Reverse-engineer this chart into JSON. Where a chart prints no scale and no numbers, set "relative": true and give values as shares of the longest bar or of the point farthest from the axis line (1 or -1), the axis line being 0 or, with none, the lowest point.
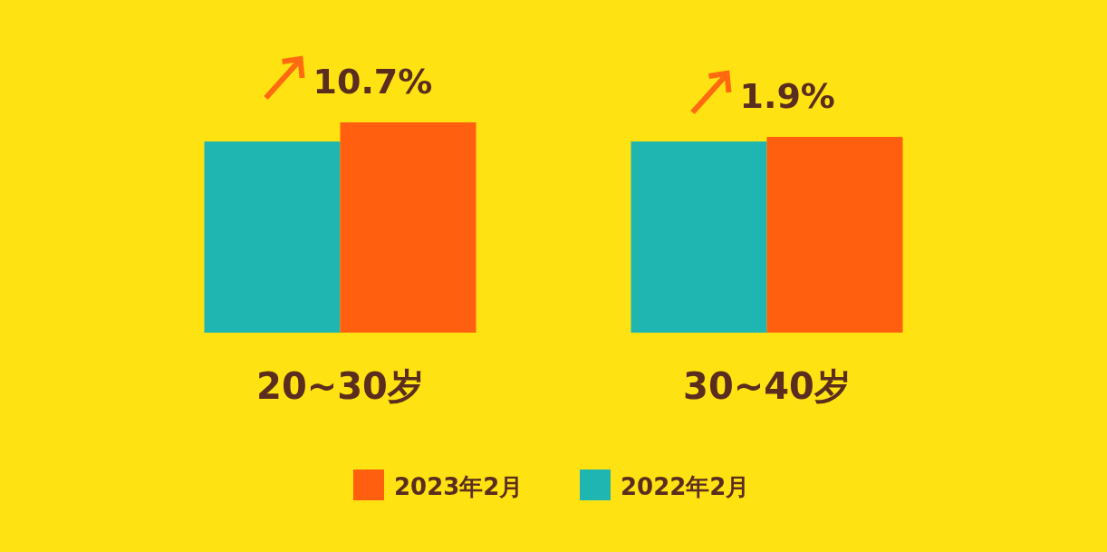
{
  "chart_data": {
    "type": "bar",
    "relative": true,
    "categories": [
      "20~30岁",
      "30~40岁"
    ],
    "series": [
      {
        "name": "2022年2月",
        "color": "#1fb5b1",
        "values": [
          0.909,
          0.909
        ]
      },
      {
        "name": "2023年2月",
        "color": "#ff5f0f",
        "values": [
          1.0,
          0.931
        ]
      }
    ],
    "annotations": [
      {
        "text": "10.7%",
        "x": "20~30岁",
        "y": 1.0
      },
      {
        "text": "1.9%",
        "x": "30~40岁",
        "y": 0.931
      }
    ],
    "legend": "bottom"
  }
}
